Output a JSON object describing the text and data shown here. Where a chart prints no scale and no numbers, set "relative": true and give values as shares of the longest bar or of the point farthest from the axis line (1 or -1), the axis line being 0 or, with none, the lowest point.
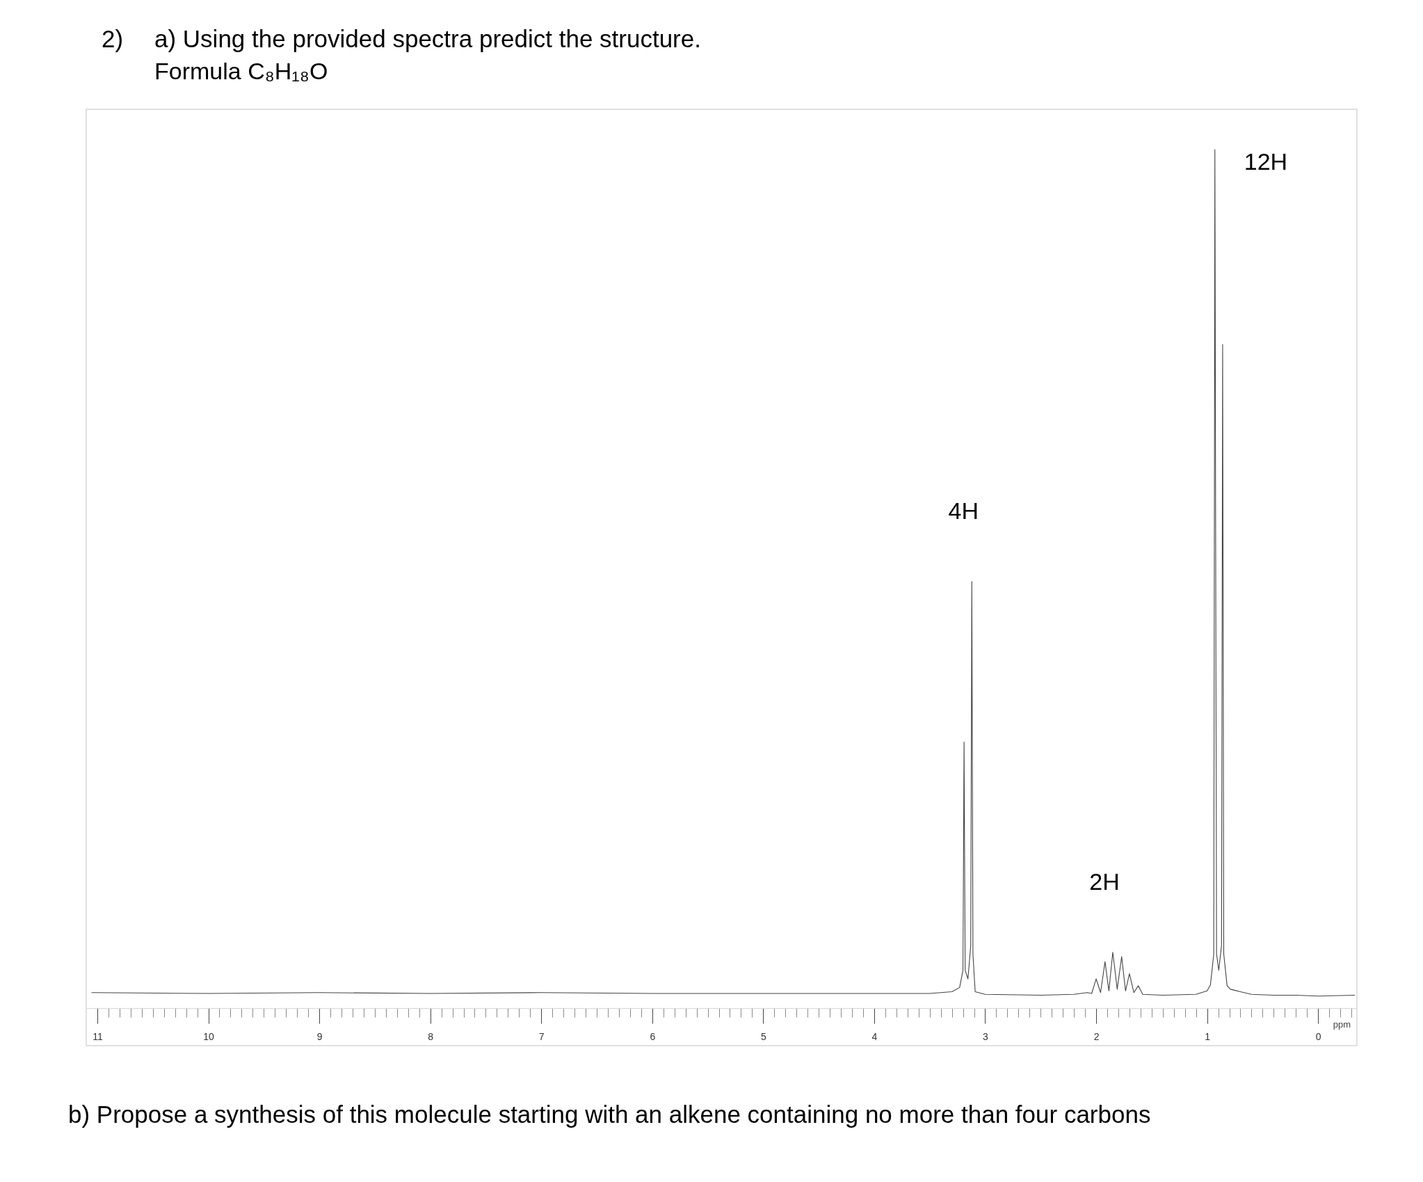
{
  "chart_data": {
    "type": "line",
    "title": "2) a) Using the provided spectra predict the structure.",
    "subtitle": "Formula C₈H₁₈O",
    "xlabel": "ppm",
    "relative": true,
    "xlim": [
      11.1,
      -0.35
    ],
    "xticks": [
      11,
      {
        "value": 10.9,
        "label": null
      },
      {
        "value": 10.8,
        "label": null
      },
      {
        "value": 10.7,
        "label": null
      },
      {
        "value": 10.6,
        "label": null
      },
      {
        "value": 10.5,
        "label": null
      },
      {
        "value": 10.4,
        "label": null
      },
      {
        "value": 10.3,
        "label": null
      },
      {
        "value": 10.2,
        "label": null
      },
      {
        "value": 10.1,
        "label": null
      },
      10,
      {
        "value": 9.9,
        "label": null
      },
      {
        "value": 9.8,
        "label": null
      },
      {
        "value": 9.7,
        "label": null
      },
      {
        "value": 9.6,
        "label": null
      },
      {
        "value": 9.5,
        "label": null
      },
      {
        "value": 9.4,
        "label": null
      },
      {
        "value": 9.3,
        "label": null
      },
      {
        "value": 9.2,
        "label": null
      },
      {
        "value": 9.1,
        "label": null
      },
      9,
      {
        "value": 8.9,
        "label": null
      },
      {
        "value": 8.8,
        "label": null
      },
      {
        "value": 8.7,
        "label": null
      },
      {
        "value": 8.6,
        "label": null
      },
      {
        "value": 8.5,
        "label": null
      },
      {
        "value": 8.4,
        "label": null
      },
      {
        "value": 8.3,
        "label": null
      },
      {
        "value": 8.2,
        "label": null
      },
      {
        "value": 8.1,
        "label": null
      },
      8,
      {
        "value": 7.9,
        "label": null
      },
      {
        "value": 7.8,
        "label": null
      },
      {
        "value": 7.7,
        "label": null
      },
      {
        "value": 7.6,
        "label": null
      },
      {
        "value": 7.5,
        "label": null
      },
      {
        "value": 7.4,
        "label": null
      },
      {
        "value": 7.3,
        "label": null
      },
      {
        "value": 7.2,
        "label": null
      },
      {
        "value": 7.1,
        "label": null
      },
      7,
      {
        "value": 6.9,
        "label": null
      },
      {
        "value": 6.8,
        "label": null
      },
      {
        "value": 6.7,
        "label": null
      },
      {
        "value": 6.6,
        "label": null
      },
      {
        "value": 6.5,
        "label": null
      },
      {
        "value": 6.4,
        "label": null
      },
      {
        "value": 6.3,
        "label": null
      },
      {
        "value": 6.2,
        "label": null
      },
      {
        "value": 6.1,
        "label": null
      },
      6,
      {
        "value": 5.9,
        "label": null
      },
      {
        "value": 5.8,
        "label": null
      },
      {
        "value": 5.7,
        "label": null
      },
      {
        "value": 5.6,
        "label": null
      },
      {
        "value": 5.5,
        "label": null
      },
      {
        "value": 5.4,
        "label": null
      },
      {
        "value": 5.3,
        "label": null
      },
      {
        "value": 5.2,
        "label": null
      },
      {
        "value": 5.1,
        "label": null
      },
      5,
      {
        "value": 4.9,
        "label": null
      },
      {
        "value": 4.8,
        "label": null
      },
      {
        "value": 4.7,
        "label": null
      },
      {
        "value": 4.6,
        "label": null
      },
      {
        "value": 4.5,
        "label": null
      },
      {
        "value": 4.4,
        "label": null
      },
      {
        "value": 4.3,
        "label": null
      },
      {
        "value": 4.2,
        "label": null
      },
      {
        "value": 4.1,
        "label": null
      },
      4,
      {
        "value": 3.9,
        "label": null
      },
      {
        "value": 3.8,
        "label": null
      },
      {
        "value": 3.7,
        "label": null
      },
      {
        "value": 3.6,
        "label": null
      },
      {
        "value": 3.5,
        "label": null
      },
      {
        "value": 3.4,
        "label": null
      },
      {
        "value": 3.3,
        "label": null
      },
      {
        "value": 3.2,
        "label": null
      },
      {
        "value": 3.1,
        "label": null
      },
      3,
      {
        "value": 2.9,
        "label": null
      },
      {
        "value": 2.8,
        "label": null
      },
      {
        "value": 2.7,
        "label": null
      },
      {
        "value": 2.6,
        "label": null
      },
      {
        "value": 2.5,
        "label": null
      },
      {
        "value": 2.4,
        "label": null
      },
      {
        "value": 2.3,
        "label": null
      },
      {
        "value": 2.2,
        "label": null
      },
      {
        "value": 2.1,
        "label": null
      },
      2,
      {
        "value": 1.9,
        "label": null
      },
      {
        "value": 1.8,
        "label": null
      },
      {
        "value": 1.7,
        "label": null
      },
      {
        "value": 1.6,
        "label": null
      },
      {
        "value": 1.5,
        "label": null
      },
      {
        "value": 1.4,
        "label": null
      },
      {
        "value": 1.3,
        "label": null
      },
      {
        "value": 1.2,
        "label": null
      },
      {
        "value": 1.1,
        "label": null
      },
      1,
      {
        "value": 0.9,
        "label": null
      },
      {
        "value": 0.8,
        "label": null
      },
      {
        "value": 0.7,
        "label": null
      },
      {
        "value": 0.6,
        "label": null
      },
      {
        "value": 0.5,
        "label": null
      },
      {
        "value": 0.4,
        "label": null
      },
      {
        "value": 0.3,
        "label": null
      },
      {
        "value": 0.2,
        "label": null
      },
      {
        "value": 0.1,
        "label": null
      },
      0,
      {
        "value": -0.1,
        "label": null
      },
      {
        "value": -0.2,
        "label": null
      },
      {
        "value": -0.3,
        "label": null
      }
    ],
    "x": [
      11.05,
      10.0,
      9.0,
      8.0,
      7.0,
      6.0,
      5.0,
      4.0,
      3.5,
      3.3,
      3.23,
      3.2,
      3.19,
      3.18,
      3.155,
      3.13,
      3.12,
      3.11,
      3.09,
      3.0,
      2.5,
      2.2,
      2.08,
      2.04,
      2.0,
      1.96,
      1.92,
      1.885,
      1.85,
      1.81,
      1.77,
      1.735,
      1.7,
      1.66,
      1.62,
      1.58,
      1.4,
      1.1,
      1.0,
      0.97,
      0.94,
      0.93,
      0.915,
      0.895,
      0.87,
      0.86,
      0.85,
      0.82,
      0.79,
      0.7,
      0.6,
      0.4,
      0.2,
      0.0,
      -0.33
    ],
    "series": [
      {
        "color": "#444444",
        "values": [
          0.018,
          0.017,
          0.018,
          0.017,
          0.018,
          0.017,
          0.017,
          0.017,
          0.017,
          0.019,
          0.024,
          0.044,
          0.31,
          0.044,
          0.034,
          0.073,
          0.497,
          0.063,
          0.019,
          0.016,
          0.015,
          0.016,
          0.018,
          0.017,
          0.034,
          0.018,
          0.054,
          0.02,
          0.065,
          0.022,
          0.06,
          0.02,
          0.04,
          0.018,
          0.026,
          0.016,
          0.015,
          0.016,
          0.02,
          0.027,
          0.063,
          1.0,
          0.063,
          0.044,
          0.073,
          0.773,
          0.063,
          0.026,
          0.022,
          0.019,
          0.016,
          0.015,
          0.015,
          0.014,
          0.015
        ]
      }
    ],
    "annotations": [
      {
        "text": "4H",
        "x": 3.12,
        "y": 0.497
      },
      {
        "text": "2H",
        "x": 1.85,
        "y": 0.065
      },
      {
        "text": "12H",
        "x": 0.93,
        "y": 1.0
      },
      "b) Propose a synthesis of this molecule starting with an alkene containing no more than four carbons"
    ]
  }
}
